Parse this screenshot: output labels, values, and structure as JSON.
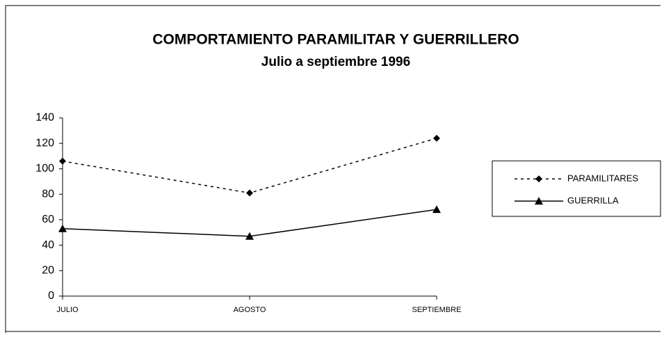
{
  "chart_data": {
    "type": "line",
    "title": "COMPORTAMIENTO PARAMILITAR Y GUERRILLERO",
    "subtitle": "Julio a septiembre 1996",
    "categories": [
      "JULIO",
      "AGOSTO",
      "SEPTIEMBRE"
    ],
    "series": [
      {
        "name": "PARAMILITARES",
        "color": "#000000",
        "dash": true,
        "marker": "diamond",
        "values": [
          106,
          81,
          124
        ]
      },
      {
        "name": "GUERRILLA",
        "color": "#000000",
        "dash": false,
        "marker": "triangle",
        "values": [
          53,
          47,
          68
        ]
      }
    ],
    "ylim": [
      0,
      140
    ],
    "yticks": [
      0,
      20,
      40,
      60,
      80,
      100,
      120,
      140
    ],
    "grid": false,
    "legend": "right"
  }
}
